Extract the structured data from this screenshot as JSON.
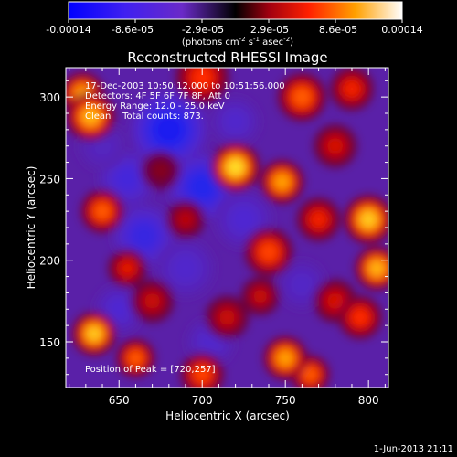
{
  "colorbar": {
    "labels": [
      "-0.00014",
      "-8.6e-05",
      "-2.9e-05",
      "2.9e-05",
      "8.6e-05",
      "0.00014"
    ],
    "unit_main": "(photons cm",
    "unit_sup1": "-2",
    "unit_mid": " s",
    "unit_sup2": "-1",
    "unit_end": " asec",
    "unit_sup3": "-2",
    "unit_close": ")"
  },
  "chart_data": {
    "type": "heatmap",
    "title": "Reconstructed RHESSI Image",
    "xlabel": "Heliocentric X (arcsec)",
    "ylabel": "Heliocentric Y (arcsec)",
    "xlim": [
      618,
      812
    ],
    "ylim": [
      122,
      318
    ],
    "xticks": [
      650,
      700,
      750,
      800
    ],
    "yticks": [
      150,
      200,
      250,
      300
    ],
    "zlim": [
      -0.00014,
      0.00014
    ],
    "annotations": [
      "17-Dec-2003 10:50:12.000 to 10:51:56.000",
      "Detectors: 4F 5F 6F 7F 8F, Att 0",
      "Energy Range: 12.0 - 25.0 keV",
      "Clean    Total counts: 873."
    ],
    "peak_label": "Position of Peak = [720,257]",
    "peak": [
      720,
      257
    ],
    "sources": [
      [
        720,
        257,
        1.0,
        10
      ],
      [
        748,
        248,
        0.85,
        9
      ],
      [
        633,
        288,
        0.9,
        10
      ],
      [
        628,
        302,
        0.85,
        9
      ],
      [
        700,
        312,
        0.6,
        11
      ],
      [
        760,
        300,
        0.7,
        10
      ],
      [
        790,
        305,
        0.55,
        9
      ],
      [
        800,
        225,
        0.95,
        10
      ],
      [
        805,
        195,
        0.9,
        9
      ],
      [
        795,
        165,
        0.6,
        9
      ],
      [
        750,
        140,
        0.85,
        9
      ],
      [
        765,
        130,
        0.7,
        8
      ],
      [
        740,
        205,
        0.65,
        10
      ],
      [
        770,
        225,
        0.55,
        9
      ],
      [
        635,
        155,
        0.95,
        9
      ],
      [
        660,
        140,
        0.7,
        8
      ],
      [
        700,
        130,
        0.65,
        9
      ],
      [
        640,
        230,
        0.7,
        9
      ],
      [
        655,
        195,
        0.5,
        8
      ],
      [
        715,
        165,
        0.4,
        9
      ],
      [
        780,
        175,
        0.45,
        9
      ],
      [
        690,
        225,
        0.35,
        8
      ],
      [
        670,
        175,
        0.4,
        9
      ],
      [
        735,
        178,
        0.4,
        8
      ],
      [
        780,
        270,
        0.45,
        9
      ],
      [
        675,
        255,
        0.2,
        8
      ],
      [
        680,
        280,
        -0.8,
        16
      ],
      [
        700,
        245,
        -0.7,
        14
      ],
      [
        655,
        250,
        -0.45,
        12
      ],
      [
        665,
        215,
        -0.55,
        13
      ],
      [
        725,
        225,
        -0.35,
        12
      ],
      [
        690,
        195,
        -0.3,
        12
      ],
      [
        650,
        170,
        -0.35,
        10
      ],
      [
        705,
        150,
        -0.3,
        10
      ],
      [
        760,
        185,
        -0.25,
        10
      ],
      [
        720,
        285,
        -0.3,
        10
      ],
      [
        640,
        270,
        -0.2,
        10
      ]
    ]
  },
  "footer": {
    "date": "1-Jun-2013 21:11"
  }
}
